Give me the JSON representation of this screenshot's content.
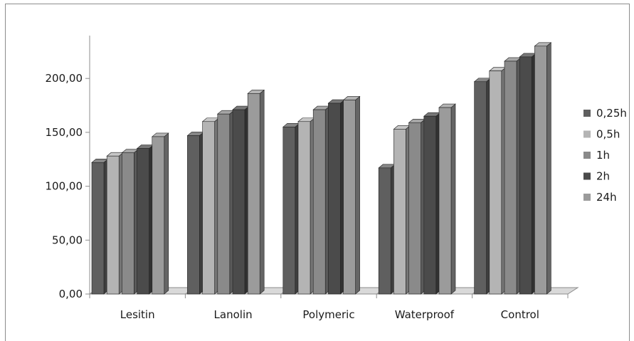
{
  "chart_data": {
    "type": "bar",
    "title": "",
    "xlabel": "",
    "ylabel": "",
    "categories": [
      "Lesitin",
      "Lanolin",
      "Polymeric",
      "Waterproof",
      "Control"
    ],
    "series": [
      {
        "name": "0,25h",
        "color": "#5f5f5f",
        "values": [
          122,
          147,
          155,
          117,
          197
        ]
      },
      {
        "name": "0,5h",
        "color": "#b4b4b4",
        "values": [
          128,
          160,
          160,
          153,
          207
        ]
      },
      {
        "name": "1h",
        "color": "#8a8a8a",
        "values": [
          131,
          167,
          171,
          159,
          216
        ]
      },
      {
        "name": "2h",
        "color": "#4b4b4b",
        "values": [
          135,
          171,
          177,
          165,
          220
        ]
      },
      {
        "name": "24h",
        "color": "#9b9b9b",
        "values": [
          146,
          186,
          180,
          173,
          230
        ]
      }
    ],
    "ylim": [
      0,
      250
    ],
    "y_ticks": [
      "0,00",
      "50,00",
      "100,00",
      "150,00",
      "200,00"
    ],
    "y_tick_values": [
      0,
      50,
      100,
      150,
      200
    ],
    "grid": false,
    "three_d": true,
    "legend_position": "right"
  }
}
